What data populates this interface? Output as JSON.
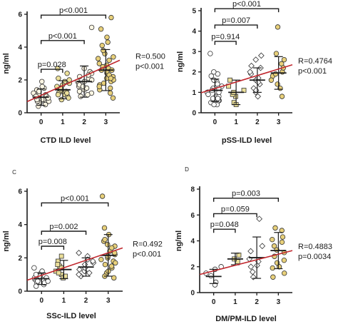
{
  "chart_data": [
    {
      "type": "scatter",
      "panel_label": "",
      "xlabel": "CTD ILD level",
      "ylabel": "ng/ml",
      "categories": [
        "0",
        "1",
        "2",
        "3"
      ],
      "ylim": [
        0,
        6
      ],
      "yticks": [
        0,
        2,
        4,
        6
      ],
      "ytick_labels": [
        "0",
        "2",
        "4",
        "6"
      ],
      "marker": "circle",
      "marker_colors": [
        "#fdf6e3",
        "#ece09a",
        "#fdf6e3",
        "#e8d07a"
      ],
      "points": [
        [
          0.9,
          1.1,
          0.6,
          0.8,
          1.3,
          1.0,
          0.7,
          1.5,
          0.5,
          0.9,
          1.2,
          0.8,
          1.1,
          0.6,
          1.4,
          1.0,
          0.7,
          0.9,
          1.6,
          1.2,
          0.4,
          0.8,
          1.0,
          1.3,
          0.9,
          1.9
        ],
        [
          1.1,
          1.5,
          1.3,
          0.8,
          1.9,
          1.2,
          1.6,
          1.0,
          2.1,
          1.4,
          1.7,
          0.9,
          2.4,
          1.3,
          1.8,
          1.1,
          2.7,
          1.5,
          1.2,
          2.0
        ],
        [
          1.6,
          2.1,
          1.4,
          1.9,
          2.5,
          1.2,
          1.8,
          2.2,
          1.0,
          1.7,
          2.0,
          2.7,
          1.5,
          1.3,
          2.4,
          1.9,
          5.2,
          1.6,
          2.3,
          1.1
        ],
        [
          2.1,
          2.8,
          1.5,
          3.3,
          2.4,
          1.9,
          4.1,
          2.6,
          1.2,
          3.0,
          2.2,
          5.8,
          1.7,
          2.9,
          3.6,
          2.0,
          4.6,
          2.5,
          1.4,
          3.2,
          2.7,
          5.1,
          1.8,
          2.3,
          4.3,
          3.8,
          0.9,
          2.6,
          3.4,
          1.6,
          2.1
        ]
      ],
      "mean": [
        0.95,
        1.4,
        1.9,
        2.6
      ],
      "sd": [
        0.5,
        0.55,
        0.95,
        1.25
      ],
      "brackets": [
        {
          "from": "0",
          "to": "1",
          "label": "p=0.028",
          "y": 2.65
        },
        {
          "from": "0",
          "to": "2",
          "label": "p<0.001",
          "y": 4.4
        },
        {
          "from": "0",
          "to": "3",
          "label": "p<0.001",
          "y": 5.95
        }
      ],
      "regression": {
        "x": [
          -0.65,
          3.65
        ],
        "y": [
          0.68,
          3.2
        ]
      },
      "correlation": {
        "r": "R=0.500",
        "p": "p<0.001"
      },
      "grid": false
    },
    {
      "type": "scatter",
      "panel_label": "",
      "xlabel": "pSS-ILD level",
      "ylabel": "ng/ml",
      "categories": [
        "0",
        "1",
        "2",
        "3"
      ],
      "ylim": [
        0,
        5
      ],
      "yticks": [
        0,
        1,
        2,
        3,
        4,
        5
      ],
      "ytick_labels": [
        "0",
        "1",
        "2",
        "3",
        "4",
        "5"
      ],
      "marker": "mixed",
      "marker_colors": [
        "#ffffff",
        "#ece09a",
        "#ffffff",
        "#e8d07a"
      ],
      "points": [
        [
          0.4,
          1.2,
          0.8,
          1.5,
          0.5,
          1.0,
          1.9,
          0.7,
          1.3,
          0.6,
          1.1,
          2.0,
          0.9,
          1.6,
          0.4,
          1.4,
          0.8,
          2.9,
          1.0,
          0.6,
          1.2,
          1.8,
          0.7
        ],
        [
          0.5,
          1.1,
          0.8,
          1.6,
          0.4,
          1.3,
          0.9,
          1.0
        ],
        [
          1.0,
          1.6,
          2.2,
          0.8,
          2.6,
          1.4,
          1.9,
          1.2,
          2.3,
          1.7,
          2.0,
          1.1,
          2.8,
          1.5
        ],
        [
          1.4,
          2.0,
          2.6,
          1.2,
          1.8,
          2.4,
          0.8,
          4.2,
          2.2,
          1.6,
          2.9,
          1.9
        ]
      ],
      "mean": [
        1.1,
        1.0,
        1.6,
        1.95
      ],
      "sd": [
        0.55,
        0.6,
        0.6,
        0.8
      ],
      "brackets": [
        {
          "from": "0",
          "to": "1",
          "label": "p=0.914",
          "y": 3.5
        },
        {
          "from": "0",
          "to": "2",
          "label": "p=0.007",
          "y": 4.3
        },
        {
          "from": "0",
          "to": "3",
          "label": "p<0.001",
          "y": 5.1
        }
      ],
      "regression": {
        "x": [
          -0.65,
          3.65
        ],
        "y": [
          0.98,
          2.35
        ]
      },
      "correlation": {
        "r": "R=0.4764",
        "p": "p<0.001"
      },
      "grid": false
    },
    {
      "type": "scatter",
      "panel_label": "C",
      "xlabel": "SSc-ILD level",
      "ylabel": "ng/ml",
      "categories": [
        "0",
        "1",
        "2",
        "3"
      ],
      "ylim": [
        0,
        6
      ],
      "yticks": [
        0,
        2,
        4,
        6
      ],
      "ytick_labels": [
        "0",
        "2",
        "4",
        "6"
      ],
      "marker": "mixed",
      "marker_colors": [
        "#ffffff",
        "#ece09a",
        "#ffffff",
        "#e8d07a"
      ],
      "points": [
        [
          0.6,
          0.9,
          0.4,
          1.1,
          0.7,
          0.5,
          0.8,
          1.2,
          0.6,
          0.3,
          0.9,
          0.7,
          1.4,
          0.5,
          0.8,
          1.0,
          0.6
        ],
        [
          1.0,
          1.5,
          0.8,
          1.8,
          1.2,
          2.1,
          0.9,
          1.4,
          1.6,
          1.1
        ],
        [
          1.2,
          1.7,
          0.9,
          2.1,
          1.4,
          1.9,
          1.0,
          1.6,
          2.3,
          1.3,
          1.8,
          1.1
        ],
        [
          1.6,
          2.4,
          1.1,
          3.0,
          2.0,
          0.8,
          2.7,
          1.4,
          3.4,
          2.2,
          1.8,
          5.7,
          1.2,
          2.6,
          3.1,
          1.9,
          0.9,
          2.3,
          1.5,
          2.8,
          3.8,
          1.7,
          2.1
        ]
      ],
      "mean": [
        0.75,
        1.3,
        1.45,
        2.15
      ],
      "sd": [
        0.35,
        0.55,
        0.55,
        1.25
      ],
      "brackets": [
        {
          "from": "0",
          "to": "1",
          "label": "p=0.008",
          "y": 2.7
        },
        {
          "from": "0",
          "to": "2",
          "label": "p=0.002",
          "y": 3.6
        },
        {
          "from": "0",
          "to": "3",
          "label": "p<0.001",
          "y": 5.3
        }
      ],
      "regression": {
        "x": [
          -0.65,
          3.65
        ],
        "y": [
          0.66,
          2.6
        ]
      },
      "correlation": {
        "r": "R=0.492",
        "p": "p<0.001"
      },
      "grid": false
    },
    {
      "type": "scatter",
      "panel_label": "D",
      "xlabel": "DM/PM-ILD level",
      "ylabel": "ng/ml",
      "categories": [
        "0",
        "1",
        "2",
        "3"
      ],
      "ylim": [
        0,
        8
      ],
      "yticks": [
        0,
        2,
        4,
        6,
        8
      ],
      "ytick_labels": [
        "0",
        "2",
        "4",
        "6",
        "8"
      ],
      "marker": "mixed",
      "marker_colors": [
        "#ffffff",
        "#ece09a",
        "#ffffff",
        "#e8d07a"
      ],
      "points": [
        [
          0.8,
          1.3,
          1.8,
          0.6,
          1.5,
          2.0
        ],
        [
          2.4,
          2.9,
          2.6
        ],
        [
          1.2,
          2.0,
          5.7,
          3.2,
          2.6,
          1.6,
          3.6,
          2.4,
          2.1
        ],
        [
          1.5,
          2.5,
          3.6,
          4.3,
          2.0,
          3.1,
          5.0,
          2.8,
          1.2,
          3.9,
          2.3,
          4.8,
          3.3,
          1.9,
          4.1
        ]
      ],
      "mean": [
        1.25,
        2.6,
        2.7,
        3.25
      ],
      "sd": [
        0.55,
        0.45,
        1.6,
        1.4
      ],
      "brackets": [
        {
          "from": "0",
          "to": "1",
          "label": "p=0.048",
          "y": 4.9
        },
        {
          "from": "0",
          "to": "2",
          "label": "p=0.059",
          "y": 6.1
        },
        {
          "from": "0",
          "to": "3",
          "label": "p=0.003",
          "y": 7.3
        }
      ],
      "regression": {
        "x": [
          -0.65,
          3.65
        ],
        "y": [
          1.4,
          3.25
        ]
      },
      "correlation": {
        "r": "R=0.4883",
        "p": "p=0.0034"
      },
      "grid": false
    }
  ],
  "colors": {
    "regression_line": "#c0272d",
    "axis": "#1a1a1a",
    "marker_edge": "#333333"
  }
}
